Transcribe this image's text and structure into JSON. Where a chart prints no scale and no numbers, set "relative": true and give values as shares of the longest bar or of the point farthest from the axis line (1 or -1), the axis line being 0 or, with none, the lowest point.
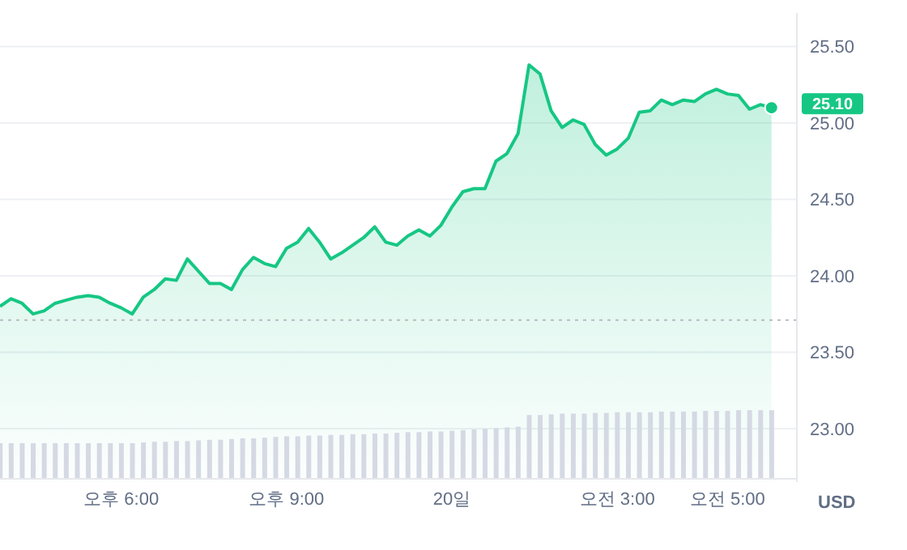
{
  "chart_data": [
    {
      "type": "area",
      "ylabel": "USD",
      "categories": [
        null,
        null,
        null,
        null,
        null,
        null,
        null,
        null,
        null,
        null,
        null,
        null,
        null,
        null,
        null,
        null,
        null,
        null,
        null,
        null,
        null,
        null,
        null,
        null,
        null,
        null,
        null,
        null,
        null,
        null,
        null,
        null,
        null,
        null,
        null,
        null,
        null,
        null,
        null,
        null,
        null,
        null,
        null,
        null,
        null,
        null,
        null,
        null,
        null,
        null,
        null,
        null,
        null,
        null,
        null,
        null,
        null,
        null,
        null,
        null,
        null,
        null,
        null,
        null,
        null,
        null,
        null,
        null,
        null,
        null,
        null
      ],
      "series": [
        {
          "color": "#16c784",
          "values": [
            23.8,
            23.85,
            23.82,
            23.75,
            23.77,
            23.82,
            23.84,
            23.86,
            23.87,
            23.86,
            23.82,
            23.79,
            23.75,
            23.86,
            23.91,
            23.98,
            23.97,
            24.11,
            24.03,
            23.95,
            23.95,
            23.91,
            24.04,
            24.12,
            24.08,
            24.06,
            24.18,
            24.22,
            24.31,
            24.22,
            24.11,
            24.15,
            24.2,
            24.25,
            24.32,
            24.22,
            24.2,
            24.26,
            24.3,
            24.26,
            24.33,
            24.45,
            24.55,
            24.57,
            24.57,
            24.75,
            24.8,
            24.93,
            25.38,
            25.32,
            25.08,
            24.97,
            25.02,
            24.99,
            24.86,
            24.79,
            24.83,
            24.9,
            25.07,
            25.08,
            25.15,
            25.12,
            25.15,
            25.14,
            25.19,
            25.22,
            25.19,
            25.18,
            25.09,
            25.12,
            25.1
          ]
        }
      ],
      "ylim": [
        22.65,
        25.72
      ],
      "yticks": [
        {
          "value": 23,
          "label": "23.00"
        },
        {
          "value": 23.5,
          "label": "23.50"
        },
        {
          "value": 24,
          "label": "24.00"
        },
        {
          "value": 24.5,
          "label": "24.50"
        },
        {
          "value": 25,
          "label": "25.00"
        },
        {
          "value": 25.5,
          "label": "25.50"
        }
      ],
      "ref_lines": [
        {
          "axis": "y",
          "value": 23.71,
          "line_style": "dotted",
          "color": "#b8bcc4"
        }
      ],
      "annotations": [
        "25.10"
      ],
      "grid": "y",
      "tick_labels": "y"
    },
    {
      "type": "bar",
      "relative": true,
      "tick_labels": "x",
      "categories": [
        null,
        null,
        null,
        null,
        null,
        null,
        null,
        null,
        null,
        null,
        null,
        "오후 6:00",
        null,
        null,
        null,
        null,
        null,
        null,
        null,
        null,
        null,
        null,
        null,
        null,
        null,
        null,
        "오후 9:00",
        null,
        null,
        null,
        null,
        null,
        null,
        null,
        null,
        null,
        null,
        null,
        null,
        null,
        null,
        "20일",
        null,
        null,
        null,
        null,
        null,
        null,
        null,
        null,
        null,
        null,
        null,
        null,
        null,
        null,
        "오전 3:00",
        null,
        null,
        null,
        null,
        null,
        null,
        null,
        null,
        null,
        "오전 5:00",
        null,
        null,
        null,
        null
      ],
      "series": [
        {
          "color": "#d5d9e4",
          "values": [
            0.52,
            0.52,
            0.52,
            0.52,
            0.52,
            0.52,
            0.52,
            0.52,
            0.52,
            0.52,
            0.52,
            0.52,
            0.52,
            0.53,
            0.54,
            0.54,
            0.55,
            0.55,
            0.56,
            0.57,
            0.57,
            0.58,
            0.59,
            0.59,
            0.6,
            0.61,
            0.62,
            0.62,
            0.63,
            0.63,
            0.64,
            0.64,
            0.65,
            0.65,
            0.66,
            0.66,
            0.67,
            0.68,
            0.68,
            0.69,
            0.69,
            0.7,
            0.71,
            0.72,
            0.73,
            0.74,
            0.75,
            0.76,
            0.93,
            0.93,
            0.94,
            0.95,
            0.95,
            0.95,
            0.96,
            0.96,
            0.97,
            0.97,
            0.97,
            0.97,
            0.98,
            0.98,
            0.98,
            0.98,
            0.99,
            0.99,
            0.99,
            1,
            1,
            1,
            1
          ]
        }
      ]
    }
  ]
}
